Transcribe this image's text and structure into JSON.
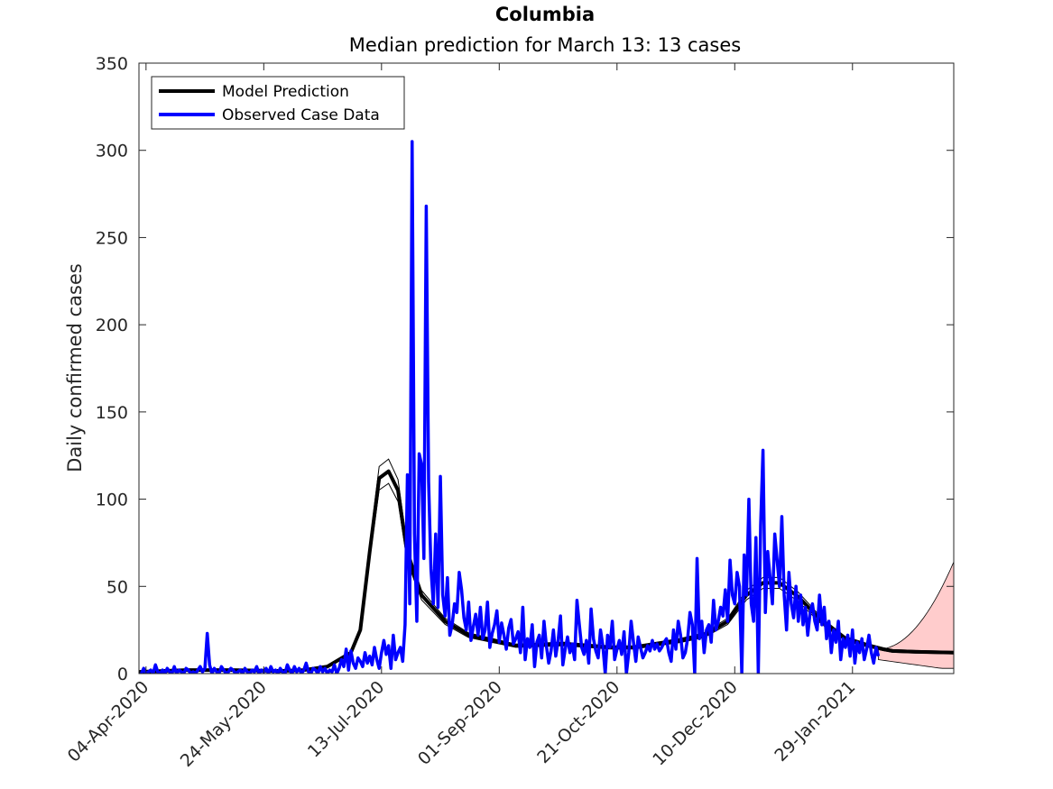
{
  "chart_data": {
    "type": "line",
    "title": "Columbia",
    "subtitle": "Median prediction for March 13: 13 cases",
    "xlabel": "",
    "ylabel": "Daily confirmed cases",
    "x_start": "2020-04-01",
    "xlim": [
      "2020-04-01",
      "2021-03-13"
    ],
    "ylim": [
      0,
      350
    ],
    "y_ticks": [
      0,
      50,
      100,
      150,
      200,
      250,
      300,
      350
    ],
    "x_ticks": [
      "04-Apr-2020",
      "24-May-2020",
      "13-Jul-2020",
      "01-Sep-2020",
      "21-Oct-2020",
      "10-Dec-2020",
      "29-Jan-2021"
    ],
    "grid": false,
    "legend_position": "top-left",
    "legend": [
      "Model Prediction",
      "Observed Case Data"
    ],
    "colors": {
      "model": "#000000",
      "observed": "#0000ff",
      "interval_fill": "#ffcccc"
    },
    "series": [
      {
        "name": "Model Prediction",
        "x_days": [
          0,
          20,
          40,
          60,
          70,
          80,
          85,
          90,
          94,
          98,
          102,
          106,
          110,
          114,
          120,
          130,
          140,
          160,
          180,
          200,
          210,
          220,
          230,
          240,
          250,
          258,
          265,
          272,
          280,
          290,
          300,
          310,
          316,
          320,
          330,
          346
        ],
        "values": [
          1,
          2,
          2,
          1.5,
          2,
          4,
          8,
          12,
          25,
          70,
          112,
          116,
          105,
          68,
          45,
          30,
          22,
          16,
          17,
          15,
          15,
          17,
          19,
          22,
          30,
          45,
          52,
          52,
          44,
          30,
          20,
          16,
          14,
          13,
          12.5,
          12
        ]
      },
      {
        "name": "Observed Case Data",
        "start_day": 1,
        "values": [
          0,
          3,
          0,
          1,
          2,
          0,
          5,
          1,
          0,
          2,
          0,
          3,
          1,
          0,
          4,
          0,
          2,
          1,
          0,
          3,
          2,
          0,
          1,
          0,
          2,
          4,
          1,
          3,
          23,
          5,
          0,
          3,
          1,
          0,
          4,
          2,
          0,
          1,
          3,
          2,
          0,
          1,
          2,
          0,
          3,
          1,
          0,
          2,
          1,
          4,
          0,
          2,
          1,
          3,
          0,
          4,
          1,
          2,
          0,
          3,
          1,
          0,
          5,
          2,
          0,
          4,
          1,
          3,
          0,
          2,
          6,
          1,
          0,
          3,
          2,
          0,
          4,
          1,
          3,
          0,
          2,
          1,
          5,
          0,
          3,
          8,
          4,
          14,
          2,
          13,
          6,
          3,
          9,
          7,
          4,
          12,
          6,
          10,
          5,
          15,
          8,
          3,
          12,
          19,
          11,
          16,
          3,
          22,
          8,
          12,
          15,
          7,
          28,
          114,
          40,
          305,
          80,
          30,
          126,
          120,
          66,
          268,
          110,
          60,
          40,
          80,
          38,
          113,
          45,
          33,
          55,
          22,
          28,
          40,
          35,
          58,
          48,
          32,
          25,
          41,
          19,
          27,
          34,
          22,
          38,
          20,
          25,
          41,
          15,
          23,
          28,
          36,
          18,
          29,
          22,
          14,
          26,
          31,
          17,
          20,
          24,
          12,
          38,
          8,
          20,
          15,
          28,
          4,
          18,
          22,
          9,
          30,
          16,
          6,
          13,
          25,
          10,
          19,
          33,
          5,
          14,
          21,
          12,
          17,
          8,
          42,
          28,
          15,
          11,
          19,
          6,
          37,
          20,
          13,
          9,
          25,
          16,
          0,
          22,
          15,
          30,
          8,
          14,
          19,
          11,
          24,
          0,
          12,
          30,
          18,
          7,
          21,
          15,
          9,
          12,
          16,
          13,
          19,
          14,
          17,
          13,
          15,
          18,
          20,
          12,
          7,
          25,
          14,
          30,
          22,
          9,
          12,
          20,
          35,
          28,
          0,
          66,
          20,
          30,
          12,
          25,
          28,
          18,
          42,
          25,
          30,
          38,
          33,
          48,
          30,
          65,
          45,
          40,
          58,
          50,
          0,
          68,
          45,
          100,
          40,
          30,
          78,
          0,
          85,
          128,
          35,
          70,
          55,
          40,
          80,
          65,
          50,
          90,
          45,
          25,
          58,
          40,
          32,
          50,
          30,
          45,
          28,
          38,
          22,
          35,
          40,
          30,
          25,
          45,
          28,
          38,
          20,
          30,
          12,
          25,
          18,
          30,
          8,
          20,
          15,
          22,
          10,
          25,
          6,
          18,
          12,
          20,
          8,
          14,
          22,
          12,
          6,
          15,
          10
        ]
      }
    ]
  }
}
